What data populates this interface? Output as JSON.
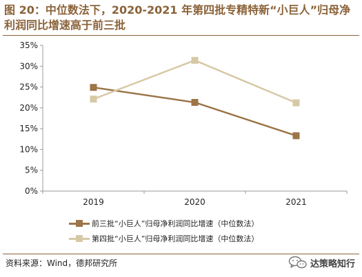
{
  "title": "图 20：中位数法下，2020-2021 年第四批专精特新“小巨人”归母净利润同比增速高于前三批",
  "source": "资料来源：Wind，德邦研究所",
  "watermark": "达策略知行",
  "icons": {
    "watermark_logo": "wechat-icon"
  },
  "colors": {
    "title": "#8b6239",
    "series1": "#9c7548",
    "series2": "#d7c8a6",
    "axis": "#999999",
    "text": "#222222"
  },
  "chart_data": {
    "type": "line",
    "title": "",
    "xlabel": "",
    "ylabel": "",
    "categories": [
      "2019",
      "2020",
      "2021"
    ],
    "ylim": [
      0,
      35
    ],
    "yticks": [
      0,
      5,
      10,
      15,
      20,
      25,
      30,
      35
    ],
    "ytick_labels": [
      "0%",
      "5%",
      "10%",
      "15%",
      "20%",
      "25%",
      "30%",
      "35%"
    ],
    "grid": false,
    "legend_position": "bottom",
    "series": [
      {
        "name": "前三批“小巨人”归母净利润同比增速（中位数法）",
        "values": [
          24.9,
          21.3,
          13.3
        ],
        "color": "#9c7548",
        "marker": "square"
      },
      {
        "name": "第四批“小巨人”归母净利润同比增速（中位数法）",
        "values": [
          22.1,
          31.4,
          21.2
        ],
        "color": "#d7c8a6",
        "marker": "square"
      }
    ]
  }
}
